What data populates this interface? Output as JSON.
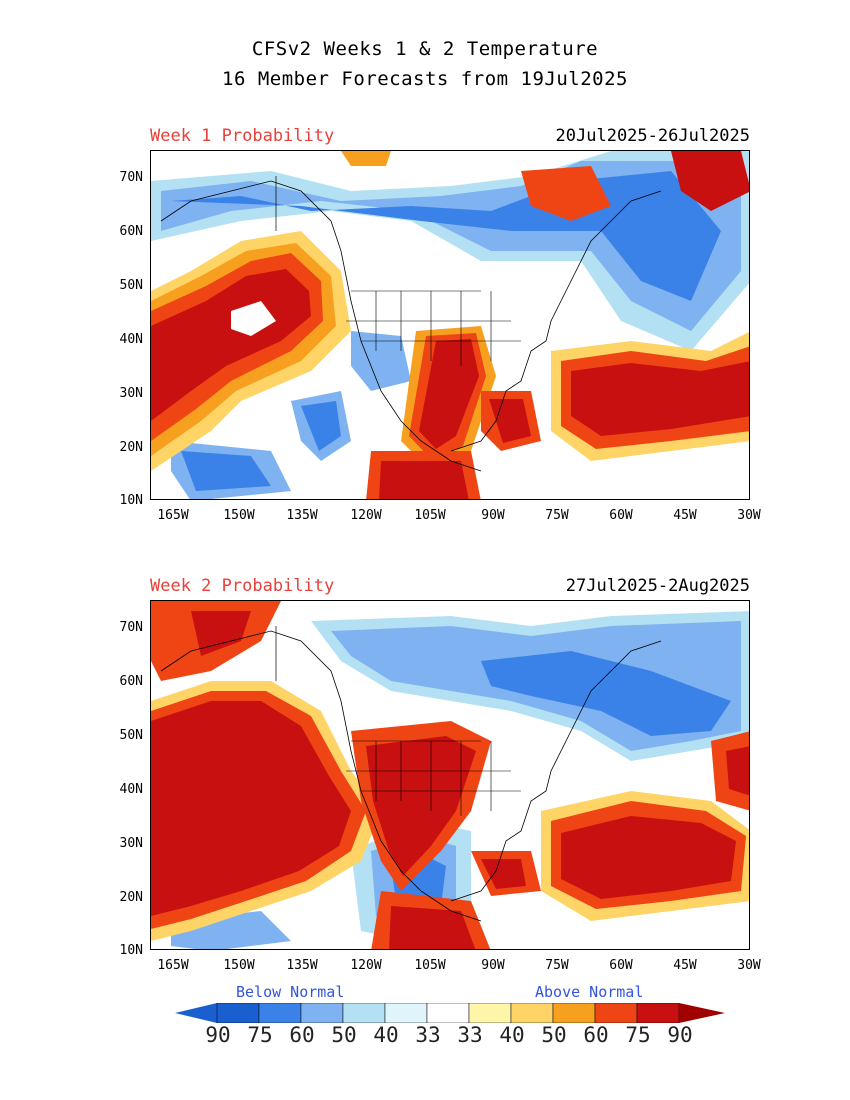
{
  "header": {
    "title_line1": "CFSv2 Weeks 1 & 2 Temperature",
    "title_line2": "16 Member Forecasts from 19Jul2025"
  },
  "panels": [
    {
      "label": "Week 1 Probability",
      "date_range": "20Jul2025-26Jul2025"
    },
    {
      "label": "Week 2 Probability",
      "date_range": "27Jul2025-2Aug2025"
    }
  ],
  "axes": {
    "y_ticks": [
      "70N",
      "60N",
      "50N",
      "40N",
      "30N",
      "20N",
      "10N"
    ],
    "x_ticks": [
      "165W",
      "150W",
      "135W",
      "120W",
      "105W",
      "90W",
      "75W",
      "60W",
      "45W",
      "30W"
    ]
  },
  "legend": {
    "below_label": "Below Normal",
    "above_label": "Above Normal",
    "below_values": [
      "90",
      "75",
      "60",
      "50",
      "40",
      "33"
    ],
    "above_values": [
      "33",
      "40",
      "50",
      "60",
      "75",
      "90"
    ],
    "below_colors": [
      "#1a5fd0",
      "#3b82e8",
      "#7fb2f0",
      "#b4e0f4",
      "#dff4fb",
      "#ffffff"
    ],
    "above_colors": [
      "#ffffff",
      "#fff5a8",
      "#ffd466",
      "#f7a020",
      "#ef4515",
      "#c81010",
      "#a00000"
    ]
  }
}
